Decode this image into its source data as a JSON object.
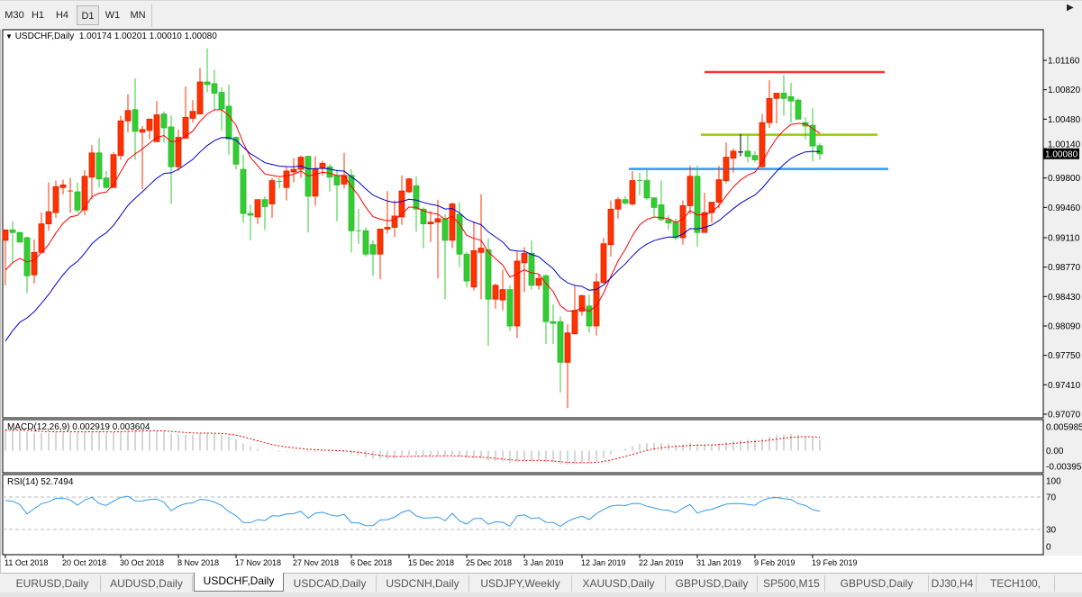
{
  "toolbar": {
    "timeframes": [
      "M30",
      "H1",
      "H4",
      "D1",
      "W1",
      "MN"
    ],
    "active": "D1"
  },
  "chart": {
    "symbol_label": "USDCHF,Daily",
    "ohlc_label": "1.00174 1.00201 1.00010 1.00080",
    "current_price": "1.00080"
  },
  "chart_data": {
    "type": "candlestick",
    "symbol": "USDCHF",
    "timeframe": "Daily",
    "colors": {
      "bull": "#ff3300",
      "bear": "#33cc33",
      "doji": "#000000",
      "fast_ma": "#ff0000",
      "slow_ma": "#0000cc",
      "grid": false
    },
    "candles_ohlc": [
      [
        0.9908,
        0.992,
        0.9856,
        0.992
      ],
      [
        0.992,
        0.993,
        0.9881,
        0.9917
      ],
      [
        0.9917,
        0.9918,
        0.9905,
        0.9906
      ],
      [
        0.9911,
        0.9912,
        0.9847,
        0.9867
      ],
      [
        0.9868,
        0.9909,
        0.9858,
        0.9894
      ],
      [
        0.9894,
        0.994,
        0.9894,
        0.9927
      ],
      [
        0.9927,
        0.9975,
        0.9919,
        0.9941
      ],
      [
        0.994,
        0.9977,
        0.9934,
        0.997
      ],
      [
        0.9969,
        0.9978,
        0.9961,
        0.9972
      ],
      [
        0.9964,
        0.998,
        0.994,
        0.9965
      ],
      [
        0.9964,
        0.9975,
        0.994,
        0.9943
      ],
      [
        0.9943,
        0.9989,
        0.9937,
        0.9982
      ],
      [
        0.9981,
        1.0018,
        0.9956,
        1.0009
      ],
      [
        1.0009,
        1.0026,
        0.9969,
        0.9979
      ],
      [
        0.998,
        0.9988,
        0.9968,
        0.9969
      ],
      [
        0.9969,
        1.001,
        0.9969,
        1.0007
      ],
      [
        1.0006,
        1.0052,
        1.0001,
        1.0046
      ],
      [
        1.0046,
        1.0077,
        1.0033,
        1.0058
      ],
      [
        1.0059,
        1.0095,
        1.0001,
        1.0034
      ],
      [
        1.0033,
        1.004,
        0.9967,
        1.0036
      ],
      [
        1.0035,
        1.0049,
        1.0025,
        1.0048
      ],
      [
        1.0022,
        1.0069,
        1.0022,
        1.0053
      ],
      [
        1.0054,
        1.0057,
        1.0021,
        1.0038
      ],
      [
        1.0039,
        1.0052,
        0.995,
        0.9993
      ],
      [
        0.9993,
        1.0036,
        0.9988,
        1.0027
      ],
      [
        1.0026,
        1.0086,
        1.0025,
        1.005
      ],
      [
        1.0049,
        1.007,
        1.0044,
        1.0057
      ],
      [
        1.0054,
        1.0107,
        1.0054,
        1.0091
      ],
      [
        1.0091,
        1.013,
        1.0079,
        1.0088
      ],
      [
        1.0089,
        1.0105,
        1.0058,
        1.0078
      ],
      [
        1.0079,
        1.0085,
        1.0035,
        1.006
      ],
      [
        1.0063,
        1.0088,
        1.0007,
        1.0025
      ],
      [
        1.0027,
        1.0028,
        0.999,
        0.9996
      ],
      [
        0.999,
        1.0007,
        0.9928,
        0.9939
      ],
      [
        0.9939,
        0.9949,
        0.9908,
        0.9937
      ],
      [
        0.9935,
        0.9955,
        0.9927,
        0.9955
      ],
      [
        0.9955,
        0.9959,
        0.992,
        0.9947
      ],
      [
        0.995,
        0.998,
        0.9934,
        0.9977
      ],
      [
        0.9976,
        0.998,
        0.9968,
        0.9975
      ],
      [
        0.9969,
        0.9993,
        0.9954,
        0.9988
      ],
      [
        0.9987,
        1.0003,
        0.9975,
        0.999
      ],
      [
        0.999,
        1.0006,
        0.998,
        1.0004
      ],
      [
        1.0005,
        1.0006,
        0.9917,
        0.9959
      ],
      [
        0.9959,
        1.0005,
        0.9948,
        0.9991
      ],
      [
        0.9991,
        1.0,
        0.9983,
        0.9997
      ],
      [
        0.9993,
        0.9996,
        0.9964,
        0.9981
      ],
      [
        0.9983,
        0.999,
        0.993,
        0.9972
      ],
      [
        0.9973,
        1.0009,
        0.9968,
        0.9983
      ],
      [
        0.9983,
        0.999,
        0.9894,
        0.9919
      ],
      [
        0.9919,
        0.9944,
        0.9904,
        0.9918
      ],
      [
        0.9919,
        0.9923,
        0.9889,
        0.9892
      ],
      [
        0.9903,
        0.9908,
        0.9867,
        0.9892
      ],
      [
        0.9892,
        0.9921,
        0.9863,
        0.9921
      ],
      [
        0.9921,
        0.9965,
        0.9916,
        0.9923
      ],
      [
        0.9923,
        0.9954,
        0.9912,
        0.9936
      ],
      [
        0.9935,
        0.9983,
        0.9926,
        0.9965
      ],
      [
        0.9964,
        0.998,
        0.9963,
        0.9979
      ],
      [
        0.9971,
        0.9982,
        0.9918,
        0.9944
      ],
      [
        0.9944,
        0.9946,
        0.9899,
        0.9927
      ],
      [
        0.9927,
        0.9942,
        0.9906,
        0.9929
      ],
      [
        0.9929,
        0.9955,
        0.9864,
        0.9933
      ],
      [
        0.9933,
        0.9938,
        0.984,
        0.9908
      ],
      [
        0.9908,
        0.9952,
        0.9899,
        0.995
      ],
      [
        0.9938,
        0.9952,
        0.9877,
        0.9892
      ],
      [
        0.9892,
        0.9895,
        0.9854,
        0.9861
      ],
      [
        0.9854,
        0.993,
        0.985,
        0.9896
      ],
      [
        0.9894,
        0.9961,
        0.984,
        0.9899
      ],
      [
        0.9897,
        0.991,
        0.9786,
        0.984
      ],
      [
        0.984,
        0.9858,
        0.9829,
        0.9856
      ],
      [
        0.9839,
        0.9874,
        0.9827,
        0.9851
      ],
      [
        0.9851,
        0.9856,
        0.9803,
        0.9809
      ],
      [
        0.9809,
        0.9895,
        0.9795,
        0.9884
      ],
      [
        0.9882,
        0.99,
        0.9848,
        0.9893
      ],
      [
        0.9893,
        0.9908,
        0.9851,
        0.9856
      ],
      [
        0.9856,
        0.9869,
        0.9851,
        0.9864
      ],
      [
        0.9867,
        0.9869,
        0.9788,
        0.9814
      ],
      [
        0.9814,
        0.9834,
        0.9788,
        0.9812
      ],
      [
        0.9814,
        0.982,
        0.9732,
        0.9767
      ],
      [
        0.9767,
        0.9811,
        0.9714,
        0.9801
      ],
      [
        0.98,
        0.9855,
        0.9799,
        0.9827
      ],
      [
        0.9826,
        0.9845,
        0.9821,
        0.9844
      ],
      [
        0.9832,
        0.9845,
        0.9801,
        0.9809
      ],
      [
        0.9809,
        0.987,
        0.9798,
        0.986
      ],
      [
        0.9859,
        0.9911,
        0.9858,
        0.9904
      ],
      [
        0.9903,
        0.9954,
        0.9889,
        0.9944
      ],
      [
        0.9944,
        0.9958,
        0.9933,
        0.9955
      ],
      [
        0.9955,
        0.9959,
        0.9949,
        0.9951
      ],
      [
        0.995,
        0.9988,
        0.9948,
        0.9977
      ],
      [
        0.9977,
        0.9986,
        0.996,
        0.9976
      ],
      [
        0.9977,
        0.9989,
        0.9955,
        0.9957
      ],
      [
        0.9957,
        0.9958,
        0.9934,
        0.9946
      ],
      [
        0.9949,
        0.9977,
        0.993,
        0.9932
      ],
      [
        0.9932,
        0.9937,
        0.992,
        0.9928
      ],
      [
        0.9929,
        0.9933,
        0.9908,
        0.9911
      ],
      [
        0.9911,
        0.9954,
        0.9903,
        0.9948
      ],
      [
        0.9948,
        0.9994,
        0.9938,
        0.9982
      ],
      [
        0.9982,
        0.9994,
        0.9901,
        0.9917
      ],
      [
        0.9917,
        0.9963,
        0.9917,
        0.994
      ],
      [
        0.994,
        0.9952,
        0.9928,
        0.9952
      ],
      [
        0.9952,
        0.9994,
        0.9945,
        0.9978
      ],
      [
        0.9977,
        1.0021,
        0.9974,
        1.0004
      ],
      [
        1.0003,
        1.0014,
        0.9986,
        1.0011
      ],
      [
        1.001,
        1.0031,
        1.0005,
        1.001
      ],
      [
        1.0011,
        1.003,
        0.9998,
        1.0005
      ],
      [
        1.0006,
        1.0011,
        0.9998,
        1.0001
      ],
      [
        0.9993,
        1.0054,
        0.9992,
        1.0044
      ],
      [
        1.0044,
        1.0093,
        1.0038,
        1.0072
      ],
      [
        1.0072,
        1.0078,
        1.0043,
        1.0078
      ],
      [
        1.0078,
        1.0099,
        1.0052,
        1.0072
      ],
      [
        1.0074,
        1.009,
        1.0044,
        1.0069
      ],
      [
        1.007,
        1.0072,
        1.0048,
        1.0048
      ],
      [
        1.0044,
        1.005,
        1.0025,
        1.004
      ],
      [
        1.0041,
        1.0061,
        0.9999,
        1.0017
      ],
      [
        1.00174,
        1.00201,
        1.0001,
        1.0008
      ]
    ],
    "price_axis": {
      "range": [
        0.9707,
        1.0116
      ],
      "ticks": [
        "1.01160",
        "1.00820",
        "1.00480",
        "1.00140",
        "0.99800",
        "0.99460",
        "0.99110",
        "0.98770",
        "0.98430",
        "0.98090",
        "0.97750",
        "0.97410",
        "0.97070"
      ]
    },
    "date_ticks": [
      {
        "bar": 0,
        "label": "11 Oct 2018"
      },
      {
        "bar": 8,
        "label": "20 Oct 2018"
      },
      {
        "bar": 16,
        "label": "30 Oct 2018"
      },
      {
        "bar": 24,
        "label": "8 Nov 2018"
      },
      {
        "bar": 32,
        "label": "17 Nov 2018"
      },
      {
        "bar": 40,
        "label": "27 Nov 2018"
      },
      {
        "bar": 48,
        "label": "6 Dec 2018"
      },
      {
        "bar": 56,
        "label": "15 Dec 2018"
      },
      {
        "bar": 64,
        "label": "25 Dec 2018"
      },
      {
        "bar": 72,
        "label": "3 Jan 2019"
      },
      {
        "bar": 80,
        "label": "12 Jan 2019"
      },
      {
        "bar": 88,
        "label": "22 Jan 2019"
      },
      {
        "bar": 96,
        "label": "31 Jan 2019"
      },
      {
        "bar": 104,
        "label": "9 Feb 2019"
      },
      {
        "bar": 112,
        "label": "19 Feb 2019"
      }
    ],
    "horizontal_lines": [
      {
        "price": 1.01025,
        "from_bar": 97,
        "to_bar": 122,
        "color": "#ff3333"
      },
      {
        "price": 1.003,
        "from_bar": 96.5,
        "to_bar": 121,
        "color": "#99cc00"
      },
      {
        "price": 0.99905,
        "from_bar": 86.5,
        "to_bar": 122.5,
        "color": "#3399ee"
      }
    ],
    "macd": {
      "label": "MACD(12,26,9) 0.002919 0.003604",
      "params": [
        12,
        26,
        9
      ],
      "ticks": [
        "0.005985",
        "0.00",
        "-0.003954"
      ],
      "range": [
        -0.003954,
        0.005985
      ],
      "histogram_color": "#c0c0c0",
      "signal_color": "#ff0000"
    },
    "rsi": {
      "label": "RSI(14) 52.7494",
      "period": 14,
      "ticks": [
        "100",
        "70",
        "30",
        "0"
      ],
      "levels": [
        70,
        30
      ],
      "range": [
        0,
        100
      ],
      "color": "#3399ee"
    }
  },
  "tabs": [
    {
      "label": "EURUSD,Daily"
    },
    {
      "label": "AUDUSD,Daily"
    },
    {
      "label": "USDCHF,Daily",
      "active": true
    },
    {
      "label": "USDCAD,Daily"
    },
    {
      "label": "USDCNH,Daily"
    },
    {
      "label": "USDJPY,Weekly"
    },
    {
      "label": "XAUUSD,Daily"
    },
    {
      "label": "GBPUSD,Daily"
    },
    {
      "label": "SP500,M15"
    },
    {
      "label": "GBPUSD,Daily"
    },
    {
      "label": "DJ30,H4"
    },
    {
      "label": "TECH100,"
    }
  ],
  "tab_scroll_icon": "triangle-right-icon"
}
